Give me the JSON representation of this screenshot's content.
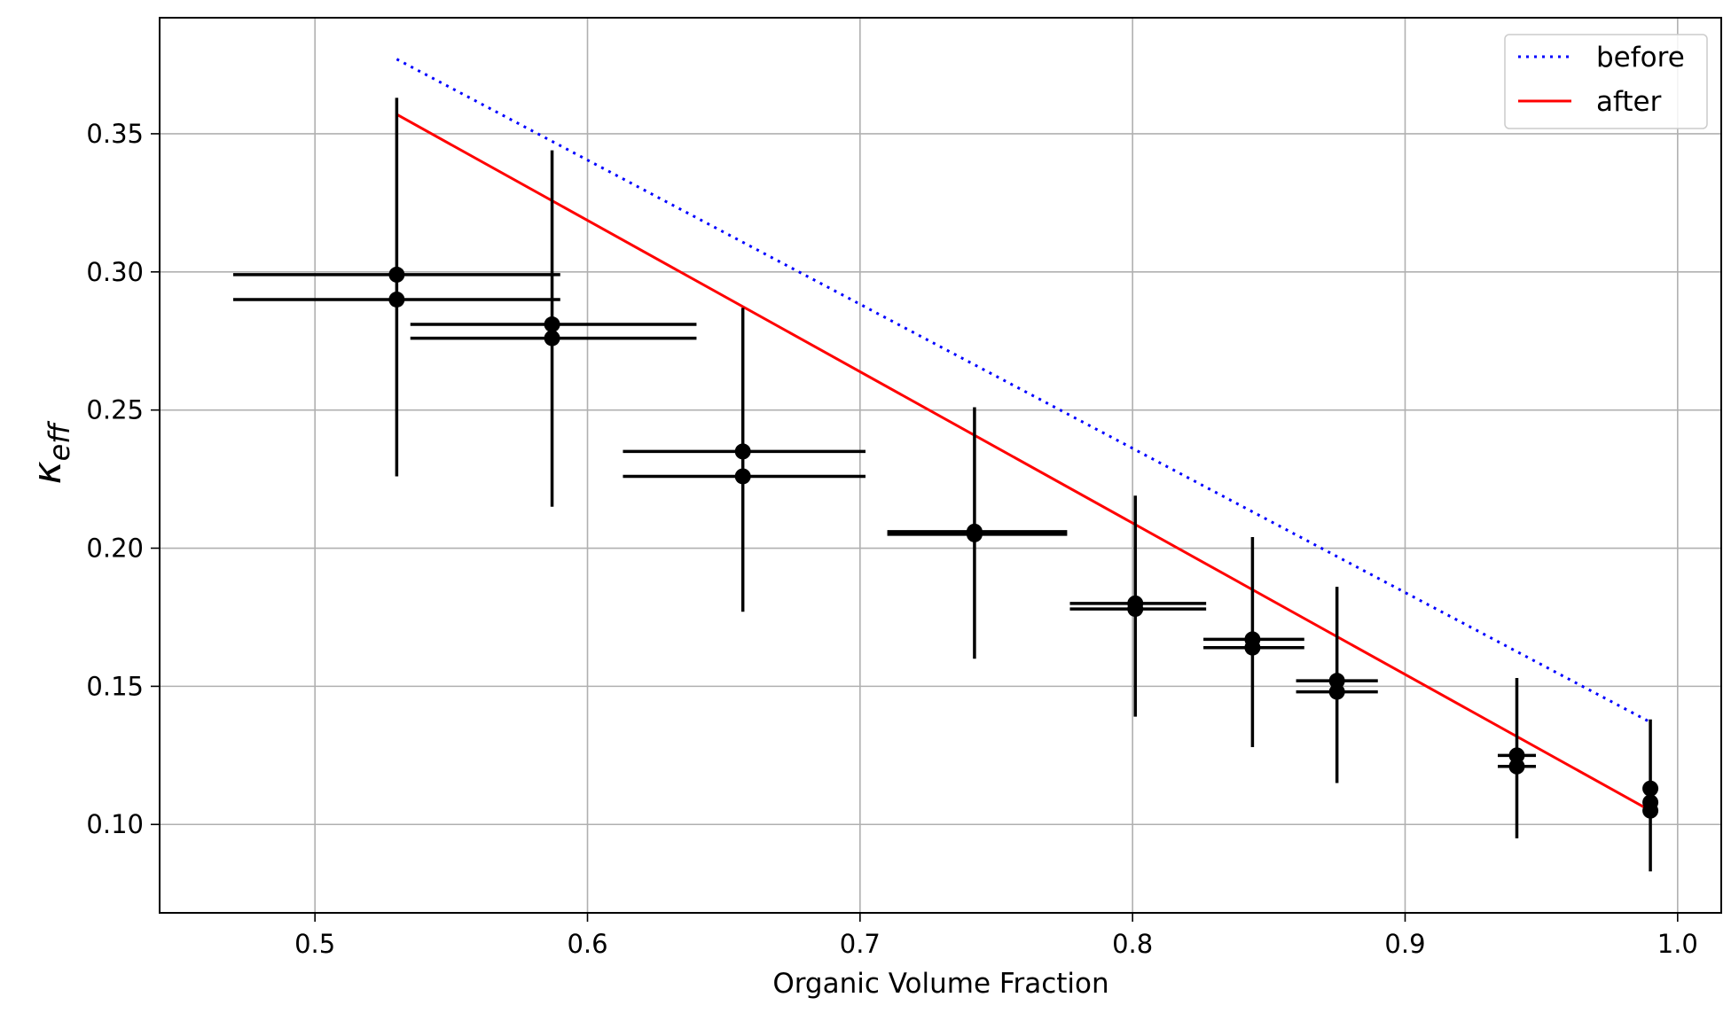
{
  "chart_data": {
    "type": "scatter",
    "xlabel": "Organic Volume Fraction",
    "ylabel": {
      "base": "κ",
      "sub": "eff"
    },
    "xlim": [
      0.443,
      1.016
    ],
    "ylim": [
      0.068,
      0.392
    ],
    "xticks": [
      0.5,
      0.6,
      0.7,
      0.8,
      0.9,
      1.0
    ],
    "xtick_labels": [
      "0.5",
      "0.6",
      "0.7",
      "0.8",
      "0.9",
      "1.0"
    ],
    "yticks": [
      0.1,
      0.15,
      0.2,
      0.25,
      0.3,
      0.35
    ],
    "ytick_labels": [
      "0.10",
      "0.15",
      "0.20",
      "0.25",
      "0.30",
      "0.35"
    ],
    "grid": true,
    "legend_position": "upper right",
    "series": [
      {
        "name": "before",
        "style": "dotted",
        "color": "#0000ff",
        "x": [
          0.53,
          0.99
        ],
        "y": [
          0.377,
          0.137
        ]
      },
      {
        "name": "after",
        "style": "solid",
        "color": "#ff0000",
        "x": [
          0.53,
          0.99
        ],
        "y": [
          0.357,
          0.105
        ]
      }
    ],
    "errorbar_points": [
      {
        "x": 0.53,
        "y": 0.299,
        "xerr": [
          0.47,
          0.59
        ],
        "yerr": [
          0.226,
          0.363
        ]
      },
      {
        "x": 0.53,
        "y": 0.29,
        "xerr": [
          0.47,
          0.59
        ],
        "yerr": null
      },
      {
        "x": 0.587,
        "y": 0.281,
        "xerr": [
          0.535,
          0.64
        ],
        "yerr": [
          0.215,
          0.344
        ]
      },
      {
        "x": 0.587,
        "y": 0.276,
        "xerr": [
          0.535,
          0.64
        ],
        "yerr": null
      },
      {
        "x": 0.657,
        "y": 0.235,
        "xerr": [
          0.613,
          0.702
        ],
        "yerr": [
          0.177,
          0.287
        ]
      },
      {
        "x": 0.657,
        "y": 0.226,
        "xerr": [
          0.613,
          0.702
        ],
        "yerr": null
      },
      {
        "x": 0.742,
        "y": 0.206,
        "xerr": [
          0.71,
          0.776
        ],
        "yerr": [
          0.16,
          0.251
        ]
      },
      {
        "x": 0.742,
        "y": 0.205,
        "xerr": [
          0.71,
          0.776
        ],
        "yerr": null
      },
      {
        "x": 0.801,
        "y": 0.18,
        "xerr": [
          0.777,
          0.827
        ],
        "yerr": [
          0.139,
          0.219
        ]
      },
      {
        "x": 0.801,
        "y": 0.178,
        "xerr": [
          0.777,
          0.827
        ],
        "yerr": null
      },
      {
        "x": 0.844,
        "y": 0.167,
        "xerr": [
          0.826,
          0.863
        ],
        "yerr": [
          0.128,
          0.204
        ]
      },
      {
        "x": 0.844,
        "y": 0.164,
        "xerr": [
          0.826,
          0.863
        ],
        "yerr": null
      },
      {
        "x": 0.875,
        "y": 0.152,
        "xerr": [
          0.86,
          0.89
        ],
        "yerr": [
          0.115,
          0.186
        ]
      },
      {
        "x": 0.875,
        "y": 0.148,
        "xerr": [
          0.86,
          0.89
        ],
        "yerr": null
      },
      {
        "x": 0.941,
        "y": 0.125,
        "xerr": [
          0.934,
          0.948
        ],
        "yerr": [
          0.095,
          0.153
        ]
      },
      {
        "x": 0.941,
        "y": 0.121,
        "xerr": [
          0.934,
          0.948
        ],
        "yerr": null
      },
      {
        "x": 0.99,
        "y": 0.113,
        "xerr": null,
        "yerr": [
          0.083,
          0.138
        ]
      },
      {
        "x": 0.99,
        "y": 0.108,
        "xerr": null,
        "yerr": null
      },
      {
        "x": 0.99,
        "y": 0.105,
        "xerr": null,
        "yerr": null
      }
    ]
  }
}
